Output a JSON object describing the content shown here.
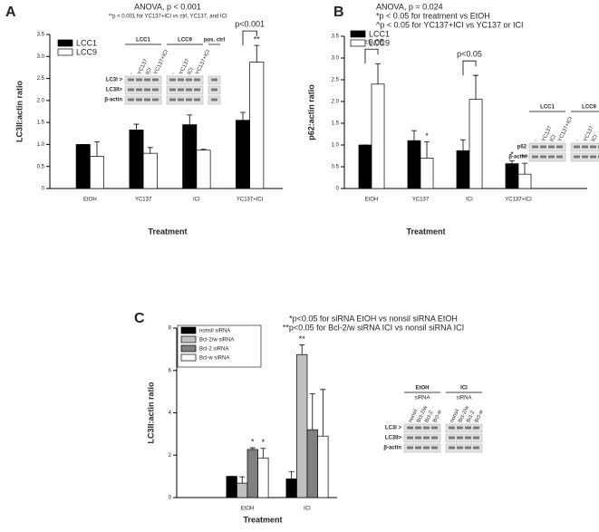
{
  "chart_data": [
    {
      "type": "bar",
      "panel": "A",
      "title": "ANOVA, p < 0.001",
      "notes": [
        "**p < 0.001 for YC137+ICI vs ctrl, YC137, and ICI"
      ],
      "x_label": "Treatment",
      "y_label": "LC3II:actin ratio",
      "categories": [
        "EtOH",
        "YC137",
        "ICI",
        "YC137+ICI"
      ],
      "series": [
        {
          "name": "LCC1",
          "color": "#000000",
          "values": [
            1.0,
            1.33,
            1.45,
            1.55
          ],
          "errors": [
            0,
            0.13,
            0.22,
            0.18
          ],
          "markers": [
            null,
            null,
            null,
            null
          ]
        },
        {
          "name": "LCC9",
          "color": "#ffffff",
          "values": [
            0.73,
            0.8,
            0.87,
            2.87
          ],
          "errors": [
            0.33,
            0.13,
            0.02,
            0.38
          ],
          "markers": [
            null,
            null,
            null,
            "**"
          ]
        }
      ],
      "annotations": [
        "p<0.001"
      ],
      "ylim": [
        0,
        3.5
      ],
      "yticks": [
        0,
        0.5,
        {
          "value": 1,
          "label": "1.0"
        },
        1.5,
        {
          "value": 2,
          "label": "2.0"
        },
        2.5,
        {
          "value": 3,
          "label": "3.0"
        },
        3.5
      ],
      "inset": {
        "groups": [
          {
            "name": "LCC1",
            "lanes": [
              "-",
              "YC137",
              "ICI",
              "YC137+ICI"
            ]
          },
          {
            "name": "LCC9",
            "lanes": [
              "-",
              "YC137",
              "ICI",
              "YC137+ICI"
            ]
          },
          {
            "name": "pos. ctrl",
            "lanes": [
              null
            ]
          }
        ],
        "rows": [
          "LC3I >",
          "LC3II>",
          "β-actin"
        ]
      }
    },
    {
      "type": "bar",
      "panel": "B",
      "title": "ANOVA, p = 0.024",
      "notes": [
        "*p < 0.05 for treatment vs EtOH",
        "^p < 0.05 for YC137+ICI vs YC137 or ICI"
      ],
      "x_label": "Treatment",
      "y_label": "p62:actin ratio",
      "categories": [
        "EtOH",
        "YC137",
        "ICI",
        "YC137+ICI"
      ],
      "series": [
        {
          "name": "LCC1",
          "color": "#000000",
          "values": [
            1.0,
            1.1,
            0.87,
            0.57
          ],
          "errors": [
            0,
            0.23,
            0.25,
            0.07
          ],
          "markers": [
            null,
            null,
            null,
            "*"
          ]
        },
        {
          "name": "LCC9",
          "color": "#ffffff",
          "values": [
            2.4,
            0.7,
            2.05,
            0.33
          ],
          "errors": [
            0.47,
            0.37,
            0.55,
            0.25
          ],
          "markers": [
            null,
            "*",
            null,
            "*^"
          ]
        }
      ],
      "annotations": [
        "p<0.05",
        "p<0.05"
      ],
      "ylim": [
        0,
        3.5
      ],
      "yticks": [
        0,
        0.5,
        {
          "value": 1,
          "label": "1.0"
        },
        1.5,
        {
          "value": 2,
          "label": "2.0"
        },
        2.5,
        {
          "value": 3,
          "label": "3.0"
        },
        3.5
      ],
      "inset": {
        "groups": [
          {
            "name": "LCC1",
            "lanes": [
              "-",
              "YC137",
              "ICI",
              "YC137+ICI"
            ]
          },
          {
            "name": "LCC9",
            "lanes": [
              "-",
              "YC137",
              "ICI",
              "YC137+ICI"
            ]
          }
        ],
        "rows": [
          "p62",
          "β-actin"
        ]
      }
    },
    {
      "type": "bar",
      "panel": "C",
      "notes": [
        "*p<0.05 for siRNA EtOH vs nonsil siRNA EtOH",
        "**p<0.05 for Bcl-2/w siRNA ICI vs nonsil siRNA ICI"
      ],
      "x_label": "Treatment",
      "y_label": "LC3II:actin ratio",
      "categories": [
        "EtOH",
        "ICI"
      ],
      "series": [
        {
          "name": "nonsil siRNA",
          "color": "#000000",
          "values": [
            1.0,
            0.88
          ],
          "errors": [
            0,
            0.35
          ],
          "markers": [
            null,
            null
          ]
        },
        {
          "name": "Bcl-2/w siRNA",
          "color": "#c0c0c0",
          "values": [
            0.68,
            6.75
          ],
          "errors": [
            0.3,
            0.45
          ],
          "markers": [
            null,
            "**"
          ]
        },
        {
          "name": "Bcl-2 siRNA",
          "color": "#808080",
          "values": [
            2.27,
            3.2
          ],
          "errors": [
            0.08,
            1.7
          ],
          "markers": [
            "*",
            null
          ]
        },
        {
          "name": "Bcl-w siRNA",
          "color": "#ffffff",
          "values": [
            1.87,
            2.9
          ],
          "errors": [
            0.45,
            2.2
          ],
          "markers": [
            "*",
            null
          ]
        }
      ],
      "ylim": [
        0,
        8
      ],
      "yticks": [
        0,
        2,
        4,
        6,
        8
      ],
      "inset": {
        "groups": [
          {
            "name": "EtOH",
            "sublabel": "siRNA",
            "lanes": [
              "nonsil",
              "Bcl-2/w",
              "Bcl-2",
              "Bcl-w"
            ]
          },
          {
            "name": "ICI",
            "sublabel": "siRNA",
            "lanes": [
              "nonsil",
              "Bcl-2/w",
              "Bcl-2",
              "Bcl-w"
            ]
          }
        ],
        "rows": [
          "LC3I >",
          "LC3II>",
          "β-actin"
        ]
      }
    }
  ]
}
